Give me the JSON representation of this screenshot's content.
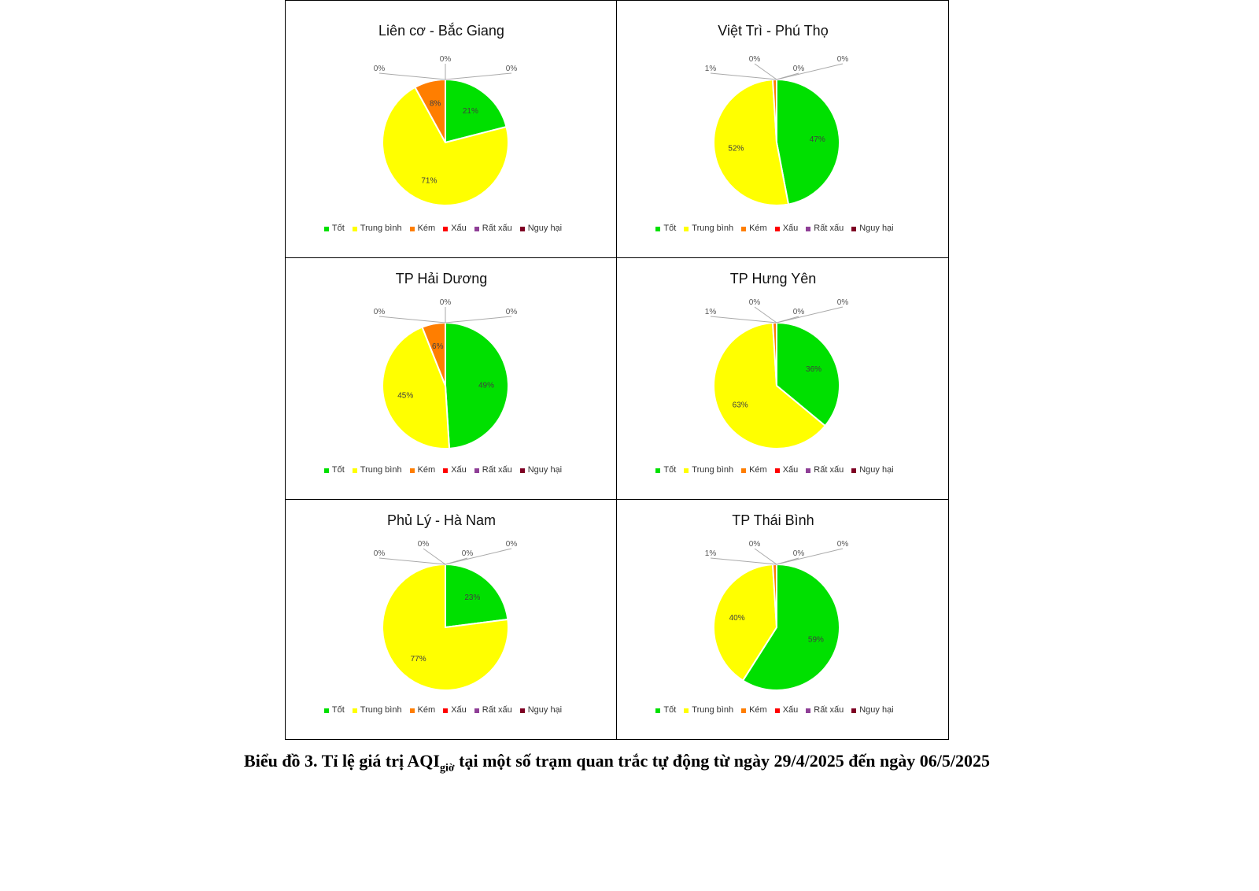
{
  "chart_data": [
    {
      "type": "pie",
      "title": "Liên cơ - Bắc Giang",
      "categories": [
        "Tốt",
        "Trung bình",
        "Kém",
        "Xấu",
        "Rất xấu",
        "Nguy hại"
      ],
      "values": [
        21,
        71,
        8,
        0,
        0,
        0
      ]
    },
    {
      "type": "pie",
      "title": "Việt Trì - Phú Thọ",
      "categories": [
        "Tốt",
        "Trung bình",
        "Kém",
        "Xấu",
        "Rất xấu",
        "Nguy hại"
      ],
      "values": [
        47,
        52,
        1,
        0,
        0,
        0
      ]
    },
    {
      "type": "pie",
      "title": "TP Hải Dương",
      "categories": [
        "Tốt",
        "Trung bình",
        "Kém",
        "Xấu",
        "Rất xấu",
        "Nguy hại"
      ],
      "values": [
        49,
        45,
        6,
        0,
        0,
        0
      ]
    },
    {
      "type": "pie",
      "title": "TP Hưng Yên",
      "categories": [
        "Tốt",
        "Trung bình",
        "Kém",
        "Xấu",
        "Rất xấu",
        "Nguy hại"
      ],
      "values": [
        36,
        63,
        1,
        0,
        0,
        0
      ]
    },
    {
      "type": "pie",
      "title": "Phủ Lý - Hà Nam",
      "categories": [
        "Tốt",
        "Trung bình",
        "Kém",
        "Xấu",
        "Rất xấu",
        "Nguy hại"
      ],
      "values": [
        23,
        77,
        0,
        0,
        0,
        0
      ]
    },
    {
      "type": "pie",
      "title": "TP Thái Bình",
      "categories": [
        "Tốt",
        "Trung bình",
        "Kém",
        "Xấu",
        "Rất xấu",
        "Nguy hại"
      ],
      "values": [
        59,
        40,
        1,
        0,
        0,
        0
      ]
    }
  ],
  "colors": [
    "#00e000",
    "#ffff00",
    "#ff7e00",
    "#ff0000",
    "#8f3f97",
    "#7e0023"
  ],
  "caption": {
    "prefix": "Biểu đồ 3.  Tỉ lệ giá trị AQI",
    "sub": "giờ",
    "suffix": " tại một số trạm quan trắc tự động từ ngày 29/4/2025 đến ngày 06/5/2025"
  }
}
